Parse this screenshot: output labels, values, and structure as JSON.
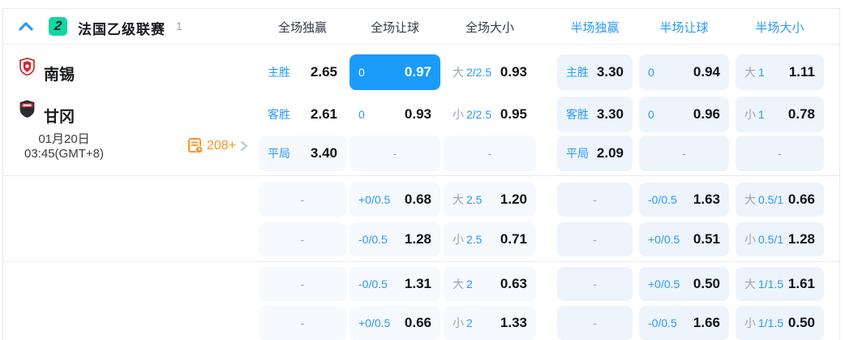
{
  "header": {
    "league_name": "法国乙级联赛",
    "match_count": "1",
    "league_icon_text": "2",
    "columns": [
      {
        "label": "全场独赢",
        "scope": "full"
      },
      {
        "label": "全场让球",
        "scope": "full"
      },
      {
        "label": "全场大小",
        "scope": "full"
      },
      {
        "label": "半场独赢",
        "scope": "half"
      },
      {
        "label": "半场让球",
        "scope": "half"
      },
      {
        "label": "半场大小",
        "scope": "half"
      }
    ]
  },
  "match": {
    "home_team": "南锡",
    "away_team": "甘冈",
    "date_line1": "01月20日",
    "date_line2": "03:45(GMT+8)",
    "extra_markets_count": "208+"
  },
  "odds_groups": [
    {
      "rows": [
        {
          "cells": [
            {
              "kind": "win",
              "label": "主胜",
              "value": "2.65",
              "bg": "white"
            },
            {
              "kind": "handicap",
              "label": "0",
              "value": "0.97",
              "bg": "selected"
            },
            {
              "kind": "ou",
              "side": "大",
              "line": "2/2.5",
              "value": "0.93",
              "bg": "white"
            },
            {
              "kind": "win",
              "label": "主胜",
              "value": "3.30",
              "bg": "light"
            },
            {
              "kind": "handicap",
              "label": "0",
              "value": "0.94",
              "bg": "light"
            },
            {
              "kind": "ou",
              "side": "大",
              "line": "1",
              "value": "1.11",
              "bg": "light"
            }
          ]
        },
        {
          "cells": [
            {
              "kind": "win",
              "label": "客胜",
              "value": "2.61",
              "bg": "white"
            },
            {
              "kind": "handicap",
              "label": "0",
              "value": "0.93",
              "bg": "white"
            },
            {
              "kind": "ou",
              "side": "小",
              "line": "2/2.5",
              "value": "0.95",
              "bg": "white"
            },
            {
              "kind": "win",
              "label": "客胜",
              "value": "3.30",
              "bg": "light"
            },
            {
              "kind": "handicap",
              "label": "0",
              "value": "0.96",
              "bg": "light"
            },
            {
              "kind": "ou",
              "side": "小",
              "line": "1",
              "value": "0.78",
              "bg": "light"
            }
          ]
        },
        {
          "cells": [
            {
              "kind": "win",
              "label": "平局",
              "value": "3.40",
              "bg": "faint"
            },
            {
              "kind": "dash",
              "bg": "faint"
            },
            {
              "kind": "dash",
              "bg": "faint"
            },
            {
              "kind": "win",
              "label": "平局",
              "value": "2.09",
              "bg": "light"
            },
            {
              "kind": "dash",
              "bg": "light"
            },
            {
              "kind": "dash",
              "bg": "light"
            }
          ]
        }
      ]
    },
    {
      "rows": [
        {
          "cells": [
            {
              "kind": "dash",
              "bg": "faint"
            },
            {
              "kind": "handicap",
              "label": "+0/0.5",
              "value": "0.68",
              "bg": "faint"
            },
            {
              "kind": "ou",
              "side": "大",
              "line": "2.5",
              "value": "1.20",
              "bg": "faint"
            },
            {
              "kind": "dash",
              "bg": "light"
            },
            {
              "kind": "handicap",
              "label": "-0/0.5",
              "value": "1.63",
              "bg": "light"
            },
            {
              "kind": "ou",
              "side": "大",
              "line": "0.5/1",
              "value": "0.66",
              "bg": "light"
            }
          ]
        },
        {
          "cells": [
            {
              "kind": "dash",
              "bg": "faint"
            },
            {
              "kind": "handicap",
              "label": "-0/0.5",
              "value": "1.28",
              "bg": "faint"
            },
            {
              "kind": "ou",
              "side": "小",
              "line": "2.5",
              "value": "0.71",
              "bg": "faint"
            },
            {
              "kind": "dash",
              "bg": "light"
            },
            {
              "kind": "handicap",
              "label": "+0/0.5",
              "value": "0.51",
              "bg": "light"
            },
            {
              "kind": "ou",
              "side": "小",
              "line": "0.5/1",
              "value": "1.28",
              "bg": "light"
            }
          ]
        }
      ]
    },
    {
      "rows": [
        {
          "cells": [
            {
              "kind": "dash",
              "bg": "faint"
            },
            {
              "kind": "handicap",
              "label": "-0/0.5",
              "value": "1.31",
              "bg": "faint"
            },
            {
              "kind": "ou",
              "side": "大",
              "line": "2",
              "value": "0.63",
              "bg": "faint"
            },
            {
              "kind": "dash",
              "bg": "light"
            },
            {
              "kind": "handicap",
              "label": "+0/0.5",
              "value": "0.50",
              "bg": "light"
            },
            {
              "kind": "ou",
              "side": "大",
              "line": "1/1.5",
              "value": "1.61",
              "bg": "light"
            }
          ]
        },
        {
          "cells": [
            {
              "kind": "dash",
              "bg": "faint"
            },
            {
              "kind": "handicap",
              "label": "+0/0.5",
              "value": "0.66",
              "bg": "faint"
            },
            {
              "kind": "ou",
              "side": "小",
              "line": "2",
              "value": "1.33",
              "bg": "faint"
            },
            {
              "kind": "dash",
              "bg": "light"
            },
            {
              "kind": "handicap",
              "label": "-0/0.5",
              "value": "1.66",
              "bg": "light"
            },
            {
              "kind": "ou",
              "side": "小",
              "line": "1/1.5",
              "value": "0.50",
              "bg": "light"
            }
          ]
        }
      ]
    }
  ],
  "colors": {
    "accent_blue": "#2a9af4",
    "selected_cell": "#1b9bfa",
    "cell_light": "#edf4fc",
    "cell_faint": "#f6f9fd",
    "league_icon_green": "#12d6a2",
    "stats_orange": "#fb9322",
    "home_badge_red": "#d22730",
    "away_badge_dark": "#2b2b33"
  }
}
